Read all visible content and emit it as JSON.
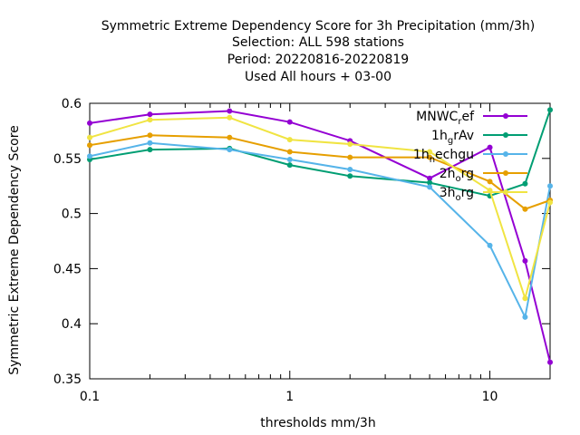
{
  "chart_data": {
    "type": "line",
    "title_lines": [
      "Symmetric Extreme Dependency Score  for 3h Precipitation (mm/3h)",
      "Selection: ALL    598 stations",
      "Period: 20220816-20220819",
      "Used  All hours  + 03-00"
    ],
    "xlabel": "thresholds mm/3h",
    "ylabel": "Symmetric Extreme Dependency Score",
    "x_scale": "log",
    "xlim": [
      0.1,
      20
    ],
    "ylim": [
      0.35,
      0.6
    ],
    "x_ticks": [
      0.1,
      1,
      10
    ],
    "x_tick_labels": [
      "0.1",
      "1",
      "10"
    ],
    "y_ticks": [
      0.35,
      0.4,
      0.45,
      0.5,
      0.55,
      0.6
    ],
    "y_tick_labels": [
      "0.35",
      "0.4",
      "0.45",
      "0.5",
      "0.55",
      "0.6"
    ],
    "grid": false,
    "legend_position": "top-right",
    "x": [
      0.1,
      0.2,
      0.5,
      1,
      2,
      5,
      10,
      15,
      20
    ],
    "series": [
      {
        "name": "MNWC_ref",
        "legend_base": "MNWC",
        "legend_sub": "r",
        "legend_tail": "ef",
        "color": "#9400d3",
        "values": [
          0.582,
          0.59,
          0.593,
          0.583,
          0.566,
          0.532,
          0.56,
          0.457,
          0.365
        ]
      },
      {
        "name": "1h_grAv",
        "legend_base": "1h",
        "legend_sub": "g",
        "legend_tail": "rAv",
        "color": "#009e73",
        "values": [
          0.549,
          0.558,
          0.559,
          0.544,
          0.534,
          0.528,
          0.516,
          0.527,
          0.594
        ]
      },
      {
        "name": "1h_nechgu",
        "legend_base": "1h",
        "legend_sub": "n",
        "legend_tail": "echgu",
        "color": "#56b4e9",
        "values": [
          0.552,
          0.564,
          0.558,
          0.549,
          0.54,
          0.524,
          0.471,
          0.406,
          0.525
        ]
      },
      {
        "name": "2h_org",
        "legend_base": "2h",
        "legend_sub": "o",
        "legend_tail": "rg",
        "color": "#e69f00",
        "values": [
          0.562,
          0.571,
          0.569,
          0.556,
          0.551,
          0.551,
          0.529,
          0.504,
          0.512
        ]
      },
      {
        "name": "3h_org",
        "legend_base": "3h",
        "legend_sub": "o",
        "legend_tail": "rg",
        "color": "#f0e442",
        "values": [
          0.569,
          0.585,
          0.587,
          0.567,
          0.563,
          0.556,
          0.521,
          0.423,
          0.51
        ]
      }
    ]
  }
}
